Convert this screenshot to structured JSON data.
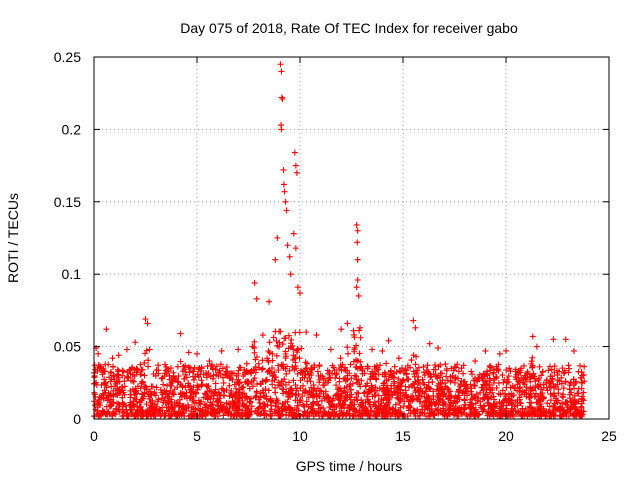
{
  "chart_data": {
    "type": "scatter",
    "title": "Day 075 of 2018, Rate Of TEC Index for receiver gabo",
    "xlabel": "GPS time / hours",
    "ylabel": "ROTI / TECUs",
    "xlim": [
      0,
      25
    ],
    "ylim": [
      0,
      0.25
    ],
    "x_ticks": [
      0,
      5,
      10,
      15,
      20,
      25
    ],
    "x_tick_labels": [
      "0",
      "5",
      "10",
      "15",
      "20",
      "25"
    ],
    "y_ticks": [
      0,
      0.05,
      0.1,
      0.15,
      0.2,
      0.25
    ],
    "y_tick_labels": [
      "0",
      "0.05",
      "0.1",
      "0.15",
      "0.2",
      "0.25"
    ],
    "grid": true,
    "marker": "+",
    "color": "#ff0000",
    "series": [
      {
        "name": "ROTI",
        "points": [
          [
            0.1,
            0.049
          ],
          [
            0.2,
            0.045
          ],
          [
            0.3,
            0.036
          ],
          [
            0.6,
            0.062
          ],
          [
            0.9,
            0.042
          ],
          [
            1.2,
            0.044
          ],
          [
            1.6,
            0.048
          ],
          [
            2.0,
            0.053
          ],
          [
            2.5,
            0.069
          ],
          [
            2.6,
            0.066
          ],
          [
            2.7,
            0.048
          ],
          [
            3.5,
            0.036
          ],
          [
            4.2,
            0.059
          ],
          [
            4.6,
            0.046
          ],
          [
            5.0,
            0.045
          ],
          [
            5.6,
            0.04
          ],
          [
            6.2,
            0.047
          ],
          [
            7.0,
            0.048
          ],
          [
            7.8,
            0.094
          ],
          [
            7.9,
            0.083
          ],
          [
            8.2,
            0.058
          ],
          [
            8.5,
            0.081
          ],
          [
            8.8,
            0.11
          ],
          [
            8.9,
            0.125
          ],
          [
            9.05,
            0.245
          ],
          [
            9.1,
            0.24
          ],
          [
            9.12,
            0.222
          ],
          [
            9.15,
            0.221
          ],
          [
            9.08,
            0.203
          ],
          [
            9.1,
            0.2
          ],
          [
            9.2,
            0.172
          ],
          [
            9.22,
            0.162
          ],
          [
            9.25,
            0.157
          ],
          [
            9.3,
            0.15
          ],
          [
            9.35,
            0.144
          ],
          [
            9.4,
            0.12
          ],
          [
            9.5,
            0.112
          ],
          [
            9.55,
            0.1
          ],
          [
            9.7,
            0.128
          ],
          [
            9.8,
            0.118
          ],
          [
            9.75,
            0.184
          ],
          [
            9.8,
            0.175
          ],
          [
            9.85,
            0.17
          ],
          [
            9.9,
            0.091
          ],
          [
            10.0,
            0.087
          ],
          [
            10.3,
            0.06
          ],
          [
            10.8,
            0.058
          ],
          [
            11.5,
            0.048
          ],
          [
            12.0,
            0.062
          ],
          [
            12.3,
            0.066
          ],
          [
            12.6,
            0.061
          ],
          [
            12.75,
            0.134
          ],
          [
            12.8,
            0.13
          ],
          [
            12.78,
            0.122
          ],
          [
            12.8,
            0.11
          ],
          [
            12.8,
            0.096
          ],
          [
            12.75,
            0.091
          ],
          [
            12.85,
            0.085
          ],
          [
            13.5,
            0.048
          ],
          [
            14.0,
            0.047
          ],
          [
            14.3,
            0.054
          ],
          [
            14.8,
            0.042
          ],
          [
            15.5,
            0.068
          ],
          [
            15.6,
            0.063
          ],
          [
            16.3,
            0.052
          ],
          [
            16.7,
            0.049
          ],
          [
            17.5,
            0.036
          ],
          [
            18.5,
            0.04
          ],
          [
            19.0,
            0.047
          ],
          [
            19.7,
            0.045
          ],
          [
            20.0,
            0.047
          ],
          [
            20.6,
            0.032
          ],
          [
            21.3,
            0.057
          ],
          [
            21.5,
            0.05
          ],
          [
            22.3,
            0.055
          ],
          [
            22.9,
            0.055
          ],
          [
            23.3,
            0.047
          ],
          [
            23.7,
            0.03
          ]
        ],
        "dense_band": {
          "x_range": [
            0,
            23.8
          ],
          "typical_y_range": [
            0.0,
            0.035
          ]
        }
      }
    ]
  }
}
